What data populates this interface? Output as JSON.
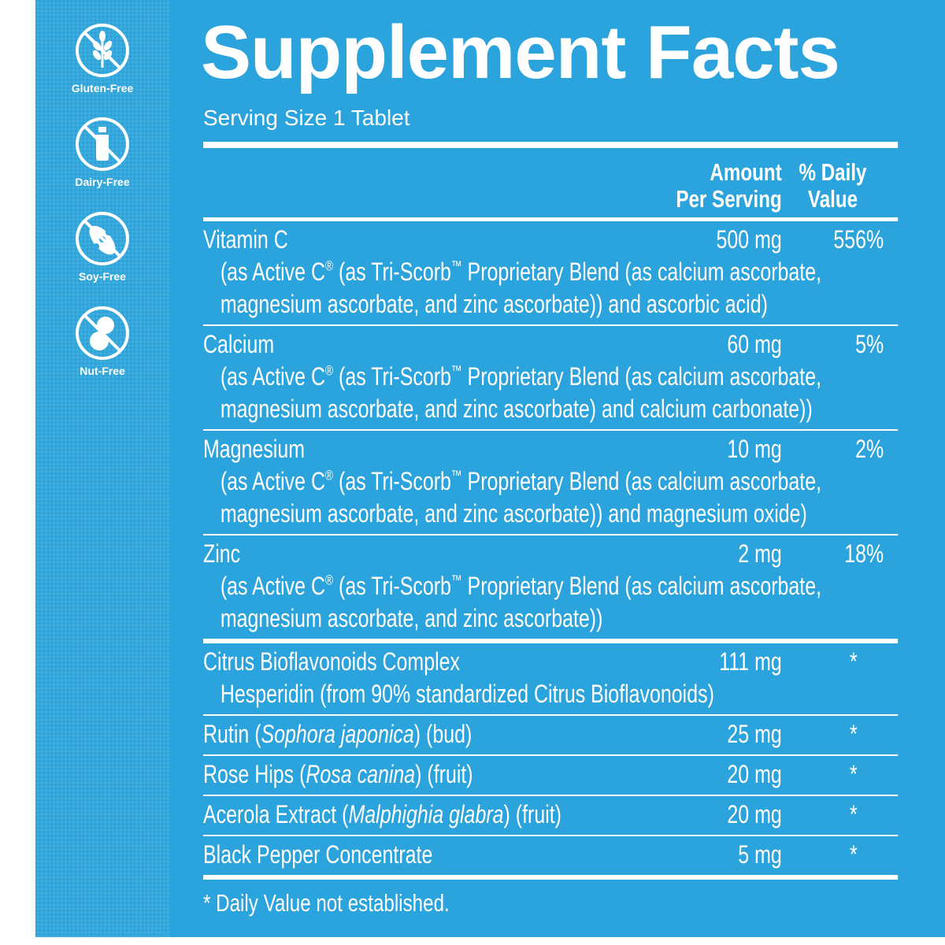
{
  "sidebar": {
    "badges": [
      "Gluten-Free",
      "Dairy-Free",
      "Soy-Free",
      "Nut-Free"
    ]
  },
  "label": {
    "title": "Supplement Facts",
    "serving_size": "Serving Size 1 Tablet",
    "header": {
      "amount": [
        "Amount",
        "Per Serving"
      ],
      "daily_value": [
        "% Daily",
        "Value"
      ]
    },
    "rows": [
      {
        "name": [
          "Vitamin C"
        ],
        "amount": "500 mg",
        "daily_value": "556%",
        "description": [
          [
            "(as Active C",
            {
              "text": "®",
              "style": "sup"
            },
            " (as Tri-Scorb",
            {
              "text": "™",
              "style": "sup"
            },
            " Proprietary Blend (as calcium ascorbate,"
          ],
          [
            "magnesium ascorbate, and zinc ascorbate)) and ascorbic acid)"
          ]
        ]
      },
      {
        "name": [
          "Calcium"
        ],
        "amount": "60 mg",
        "daily_value": "5%",
        "description": [
          [
            "(as Active C",
            {
              "text": "®",
              "style": "sup"
            },
            " (as Tri-Scorb",
            {
              "text": "™",
              "style": "sup"
            },
            " Proprietary Blend (as calcium ascorbate,"
          ],
          [
            "magnesium ascorbate, and zinc ascorbate) and calcium carbonate))"
          ]
        ]
      },
      {
        "name": [
          "Magnesium"
        ],
        "amount": "10 mg",
        "daily_value": "2%",
        "description": [
          [
            "(as Active C",
            {
              "text": "®",
              "style": "sup"
            },
            " (as Tri-Scorb",
            {
              "text": "™",
              "style": "sup"
            },
            " Proprietary Blend (as calcium ascorbate,"
          ],
          [
            "magnesium ascorbate, and zinc ascorbate)) and magnesium oxide)"
          ]
        ]
      },
      {
        "name": [
          "Zinc"
        ],
        "amount": "2 mg",
        "daily_value": "18%",
        "description": [
          [
            "(as Active C",
            {
              "text": "®",
              "style": "sup"
            },
            " (as Tri-Scorb",
            {
              "text": "™",
              "style": "sup"
            },
            " Proprietary Blend (as calcium ascorbate,"
          ],
          [
            "magnesium ascorbate, and zinc ascorbate))"
          ]
        ]
      },
      {
        "name": [
          "Citrus Bioflavonoids Complex"
        ],
        "amount": "111 mg",
        "daily_value": "*",
        "description": [
          [
            "Hesperidin (from 90% standardized Citrus Bioflavonoids)"
          ]
        ]
      },
      {
        "name": [
          "Rutin (",
          {
            "text": "Sophora japonica",
            "style": "italic"
          },
          ") (bud)"
        ],
        "amount": "25 mg",
        "daily_value": "*"
      },
      {
        "name": [
          "Rose Hips (",
          {
            "text": "Rosa canina",
            "style": "italic"
          },
          ") (fruit)"
        ],
        "amount": "20 mg",
        "daily_value": "*"
      },
      {
        "name": [
          "Acerola Extract (",
          {
            "text": "Malphighia glabra",
            "style": "italic"
          },
          ") (fruit)"
        ],
        "amount": "20 mg",
        "daily_value": "*"
      },
      {
        "name": [
          "Black Pepper Concentrate"
        ],
        "amount": "5 mg",
        "daily_value": "*"
      }
    ],
    "footnote": "* Daily Value not established."
  }
}
